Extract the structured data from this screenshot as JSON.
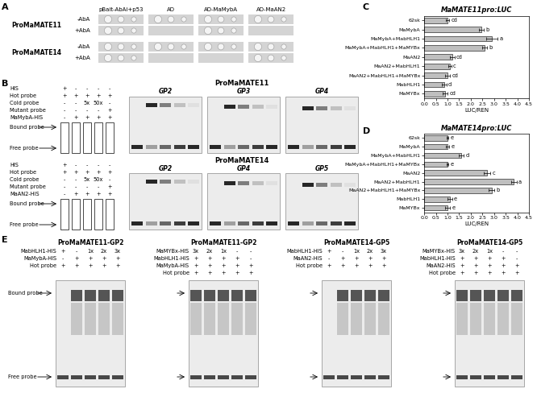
{
  "panel_labels": [
    "A",
    "B",
    "C",
    "D",
    "E"
  ],
  "panel_A": {
    "columns": [
      "pBait-AbAi+p53",
      "AD",
      "AD-MaMybA",
      "AD-MaAN2"
    ],
    "rows": [
      {
        "promoter": "ProMaMATE11",
        "conditions": [
          {
            "label": "-AbA",
            "growth": [
              true,
              true,
              true,
              true
            ]
          },
          {
            "label": "+AbA",
            "growth": [
              true,
              false,
              true,
              false
            ]
          }
        ]
      },
      {
        "promoter": "ProMaMATE14",
        "conditions": [
          {
            "label": "-AbA",
            "growth": [
              true,
              true,
              true,
              true
            ]
          },
          {
            "label": "+AbA",
            "growth": [
              true,
              false,
              false,
              true
            ]
          }
        ]
      }
    ]
  },
  "panel_B": [
    {
      "title": "ProMaMATE11",
      "row_labels": [
        "HIS",
        "Hot probe",
        "Cold probe",
        "Mutant probe",
        "MaMybA-HIS"
      ],
      "lanes": [
        [
          "+",
          "-",
          "-",
          "-",
          "-"
        ],
        [
          "+",
          "+",
          "+",
          "+",
          "+"
        ],
        [
          "-",
          "-",
          "5x",
          "50x",
          "-"
        ],
        [
          "-",
          "-",
          "-",
          "-",
          "+"
        ],
        [
          "-",
          "+",
          "+",
          "+",
          "+"
        ]
      ],
      "gels": [
        "GP2",
        "GP3",
        "GP4"
      ],
      "band_labels": [
        "Bound probe",
        "Free probe"
      ]
    },
    {
      "title": "ProMaMATE14",
      "row_labels": [
        "HIS",
        "Hot probe",
        "Cold probe",
        "Mutant probe",
        "MaAN2-HIS"
      ],
      "lanes": [
        [
          "+",
          "-",
          "-",
          "-",
          "-"
        ],
        [
          "+",
          "+",
          "+",
          "+",
          "+"
        ],
        [
          "-",
          "-",
          "5x",
          "50x",
          "-"
        ],
        [
          "-",
          "-",
          "-",
          "-",
          "+"
        ],
        [
          "-",
          "+",
          "+",
          "+",
          "+"
        ]
      ],
      "gels": [
        "GP2",
        "GP4",
        "GP5"
      ],
      "band_labels": [
        "Bound probe",
        "Free probe"
      ]
    }
  ],
  "panel_E": [
    {
      "title": "ProMaMATE11-GP2",
      "row_labels": [
        "MabHLH1-HIS",
        "MaMybA-HIS",
        "Hot probe"
      ],
      "lanes": [
        [
          "+",
          "-",
          "1x",
          "2x",
          "3x"
        ],
        [
          "-",
          "+",
          "+",
          "+",
          "+"
        ],
        [
          "+",
          "+",
          "+",
          "+",
          "+"
        ]
      ],
      "band_labels": [
        "Bound probe",
        "Free probe"
      ]
    },
    {
      "title": "ProMaMATE11-GP2",
      "row_labels": [
        "MaMYBx-HIS",
        "MabHLH1-HIS",
        "MaMybA-HIS",
        "Hot probe"
      ],
      "lanes": [
        [
          "3x",
          "2x",
          "1x",
          "-",
          "-"
        ],
        [
          "+",
          "+",
          "+",
          "+",
          "-"
        ],
        [
          "+",
          "+",
          "+",
          "+",
          "+"
        ],
        [
          "+",
          "+",
          "+",
          "+",
          "+"
        ]
      ],
      "band_labels": []
    },
    {
      "title": "ProMaMATE14-GP5",
      "row_labels": [
        "MabHLH1-HIS",
        "MaAN2-HIS",
        "Hot probe"
      ],
      "lanes": [
        [
          "+",
          "-",
          "1x",
          "2x",
          "3x"
        ],
        [
          "-",
          "+",
          "+",
          "+",
          "+"
        ],
        [
          "+",
          "+",
          "+",
          "+",
          "+"
        ]
      ],
      "band_labels": []
    },
    {
      "title": "ProMaMATE14-GP5",
      "row_labels": [
        "MaMYBx-HIS",
        "MabHLH1-HIS",
        "MaAN2-HIS",
        "Hot probe"
      ],
      "lanes": [
        [
          "3x",
          "2x",
          "1x",
          "-",
          "-"
        ],
        [
          "+",
          "+",
          "+",
          "+",
          "-"
        ],
        [
          "+",
          "+",
          "+",
          "+",
          "+"
        ],
        [
          "+",
          "+",
          "+",
          "+",
          "+"
        ]
      ],
      "band_labels": []
    }
  ],
  "chart_data": [
    {
      "type": "bar",
      "orientation": "horizontal",
      "title": "MaMATE11pro:LUC",
      "xlabel": "LUC/REN",
      "categories": [
        "62sk",
        "MaMybA",
        "MaMybA+MabHLH1",
        "MaMybA+MabHLH1+MaMYBx",
        "MaAN2",
        "MaAN2+MabHLH1",
        "MaAN2+MabHLH1+MaMYBx",
        "MabHLH1",
        "MaMYBx"
      ],
      "values": [
        1.0,
        2.45,
        2.9,
        2.6,
        1.2,
        1.1,
        1.0,
        0.85,
        0.9
      ],
      "errors": [
        0.08,
        0.1,
        0.25,
        0.1,
        0.1,
        0.06,
        0.1,
        0.1,
        0.1
      ],
      "letters": [
        "cd",
        "b",
        "a",
        "b",
        "cd",
        "c",
        "cd",
        "d",
        "cd"
      ],
      "color": "#bfbfbf",
      "xlim": [
        0,
        4.5
      ],
      "xticks": [
        {
          "value": 0,
          "label": "0.0"
        },
        {
          "value": 0.5,
          "label": "0.5"
        },
        {
          "value": 1,
          "label": "1.0"
        },
        {
          "value": 1.5,
          "label": "1.5"
        },
        {
          "value": 2,
          "label": "2.0"
        },
        {
          "value": 2.5,
          "label": "2.5"
        },
        {
          "value": 3,
          "label": "3.0"
        },
        {
          "value": 3.5,
          "label": "3.5"
        },
        {
          "value": 4,
          "label": "4.0"
        },
        {
          "value": 4.5,
          "label": "4.5"
        }
      ]
    },
    {
      "type": "bar",
      "orientation": "horizontal",
      "title": "MaMATE14pro:LUC",
      "xlabel": "LUC/REN",
      "categories": [
        "62sk",
        "MaMybA",
        "MaMybA+MabHLH1",
        "MaMybA+MabHLH1+MaMYBx",
        "MaAN2",
        "MaAN2+MabHLH1",
        "MaAN2+MabHLH1+MaMYBx",
        "MabHLH1",
        "MaMYBx"
      ],
      "values": [
        1.0,
        1.0,
        1.6,
        1.0,
        2.7,
        3.85,
        2.9,
        1.1,
        1.0
      ],
      "errors": [
        0.05,
        0.08,
        0.1,
        0.05,
        0.15,
        0.12,
        0.12,
        0.1,
        0.1
      ],
      "letters": [
        "e",
        "e",
        "d",
        "e",
        "c",
        "a",
        "b",
        "e",
        "e"
      ],
      "color": "#bfbfbf",
      "xlim": [
        0,
        4.5
      ],
      "xticks": [
        {
          "value": 0,
          "label": "0.0"
        },
        {
          "value": 0.5,
          "label": "0.5"
        },
        {
          "value": 1,
          "label": "1.0"
        },
        {
          "value": 1.5,
          "label": "1.5"
        },
        {
          "value": 2,
          "label": "2.0"
        },
        {
          "value": 2.5,
          "label": "2.5"
        },
        {
          "value": 3,
          "label": "3.0"
        },
        {
          "value": 3.5,
          "label": "3.5"
        },
        {
          "value": 4,
          "label": "4.0"
        },
        {
          "value": 4.5,
          "label": "4.5"
        }
      ]
    }
  ]
}
